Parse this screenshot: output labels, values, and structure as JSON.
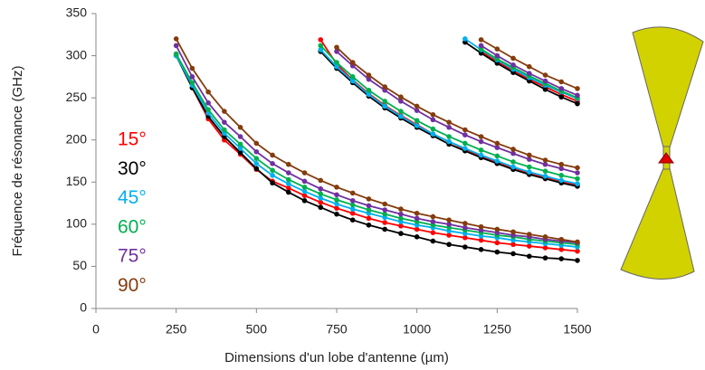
{
  "chart_data": {
    "type": "line",
    "x_label": "Dimensions d'un lobe d'antenne (µm)",
    "y_label": "Fréquence de résonance (GHz)",
    "x": [
      250,
      300,
      350,
      400,
      450,
      500,
      550,
      600,
      650,
      700,
      750,
      800,
      850,
      900,
      950,
      1000,
      1050,
      1100,
      1150,
      1200,
      1250,
      1300,
      1350,
      1400,
      1450,
      1500
    ],
    "xlim": [
      0,
      1500
    ],
    "xticks": [
      0,
      250,
      500,
      750,
      1000,
      1250,
      1500
    ],
    "ylim": [
      0,
      350
    ],
    "yticks": [
      0,
      50,
      100,
      150,
      200,
      250,
      300,
      350
    ],
    "series": [
      {
        "name": "15°",
        "color": "#ff0000",
        "modes": [
          [
            302,
            262,
            225,
            200,
            183,
            165,
            151,
            143,
            134,
            126,
            119,
            113,
            107,
            102,
            98,
            94,
            90,
            87,
            84,
            81,
            78,
            76,
            74,
            72,
            70,
            68
          ],
          [
            null,
            null,
            null,
            null,
            null,
            null,
            null,
            null,
            null,
            319,
            290,
            271,
            255,
            241,
            229,
            218,
            207,
            198,
            189,
            181,
            174,
            167,
            161,
            156,
            151,
            147
          ],
          [
            null,
            null,
            null,
            null,
            null,
            null,
            null,
            null,
            null,
            null,
            null,
            null,
            null,
            null,
            null,
            null,
            null,
            null,
            null,
            305,
            293,
            282,
            272,
            263,
            254,
            246
          ]
        ]
      },
      {
        "name": "30°",
        "color": "#000000",
        "modes": [
          [
            300,
            262,
            228,
            204,
            185,
            166,
            149,
            138,
            128,
            120,
            112,
            105,
            99,
            94,
            89,
            85,
            80,
            76,
            73,
            70,
            67,
            65,
            62,
            60,
            59,
            57
          ],
          [
            null,
            null,
            null,
            null,
            null,
            null,
            null,
            null,
            null,
            305,
            285,
            268,
            252,
            238,
            226,
            215,
            205,
            195,
            187,
            179,
            172,
            165,
            159,
            154,
            149,
            145
          ],
          [
            null,
            null,
            null,
            null,
            null,
            null,
            null,
            null,
            null,
            null,
            null,
            null,
            null,
            null,
            null,
            null,
            null,
            null,
            316,
            303,
            291,
            280,
            270,
            260,
            251,
            243
          ]
        ]
      },
      {
        "name": "45°",
        "color": "#00b0f0",
        "modes": [
          [
            300,
            265,
            232,
            208,
            190,
            172,
            158,
            148,
            139,
            131,
            124,
            118,
            113,
            108,
            103,
            99,
            96,
            92,
            89,
            86,
            84,
            81,
            79,
            77,
            75,
            73
          ],
          [
            null,
            null,
            null,
            null,
            null,
            null,
            null,
            null,
            null,
            307,
            287,
            270,
            254,
            240,
            228,
            217,
            207,
            198,
            190,
            182,
            175,
            168,
            162,
            157,
            152,
            148
          ],
          [
            null,
            null,
            null,
            null,
            null,
            null,
            null,
            null,
            null,
            null,
            null,
            null,
            null,
            null,
            null,
            null,
            null,
            null,
            320,
            307,
            295,
            284,
            274,
            265,
            257,
            249
          ]
        ]
      },
      {
        "name": "60°",
        "color": "#00b050",
        "modes": [
          [
            302,
            268,
            236,
            212,
            195,
            178,
            164,
            153,
            144,
            136,
            129,
            123,
            117,
            112,
            107,
            103,
            99,
            96,
            93,
            90,
            87,
            85,
            82,
            80,
            78,
            76
          ],
          [
            null,
            null,
            null,
            null,
            null,
            null,
            null,
            null,
            null,
            312,
            292,
            275,
            259,
            246,
            234,
            223,
            213,
            204,
            196,
            188,
            181,
            174,
            168,
            163,
            158,
            154
          ],
          [
            null,
            null,
            null,
            null,
            null,
            null,
            null,
            null,
            null,
            null,
            null,
            null,
            null,
            null,
            null,
            null,
            null,
            null,
            null,
            308,
            296,
            286,
            276,
            267,
            258,
            250
          ]
        ]
      },
      {
        "name": "75°",
        "color": "#7030a0",
        "modes": [
          [
            312,
            275,
            244,
            221,
            204,
            186,
            172,
            161,
            151,
            142,
            135,
            128,
            122,
            117,
            112,
            107,
            103,
            100,
            96,
            93,
            90,
            87,
            85,
            82,
            80,
            78
          ],
          [
            null,
            null,
            null,
            null,
            null,
            null,
            null,
            null,
            null,
            null,
            305,
            288,
            272,
            259,
            246,
            235,
            224,
            215,
            206,
            198,
            191,
            184,
            177,
            171,
            166,
            161
          ],
          [
            null,
            null,
            null,
            null,
            null,
            null,
            null,
            null,
            null,
            null,
            null,
            null,
            null,
            null,
            null,
            null,
            null,
            null,
            null,
            312,
            300,
            289,
            279,
            270,
            261,
            253
          ]
        ]
      },
      {
        "name": "90°",
        "color": "#843c0c",
        "modes": [
          [
            320,
            285,
            257,
            234,
            215,
            196,
            182,
            171,
            161,
            152,
            144,
            137,
            130,
            124,
            118,
            113,
            109,
            105,
            101,
            97,
            94,
            91,
            88,
            85,
            82,
            79
          ],
          [
            null,
            null,
            null,
            null,
            null,
            null,
            null,
            null,
            null,
            null,
            310,
            292,
            277,
            263,
            251,
            240,
            230,
            221,
            212,
            204,
            196,
            189,
            182,
            176,
            171,
            167
          ],
          [
            null,
            null,
            null,
            null,
            null,
            null,
            null,
            null,
            null,
            null,
            null,
            null,
            null,
            null,
            null,
            null,
            null,
            null,
            null,
            319,
            308,
            297,
            287,
            277,
            269,
            261
          ]
        ]
      }
    ]
  }
}
